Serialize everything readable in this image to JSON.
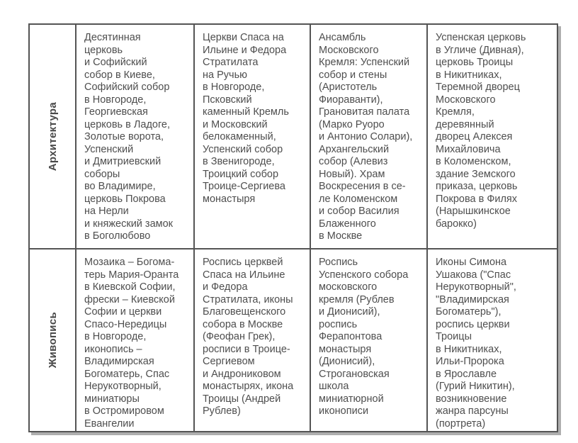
{
  "table": {
    "colors": {
      "border": "#545454",
      "text": "#4e4e4e",
      "shadow": "#aeaeae",
      "background": "#ffffff"
    },
    "rows": [
      {
        "header": "Архитектура",
        "cells": [
          [
            "Десятинная",
            "церковь",
            "и Софийский",
            "собор в Киеве,",
            "Софийский собор",
            "в Новгороде,",
            "Георгиевская",
            "церковь в Ладоге,",
            "Золотые ворота,",
            "Успенский",
            "и  Дмитриевский",
            "соборы",
            "во Владимире,",
            "церковь Покрова",
            "на Нерли",
            "и княжеский замок",
            "в Боголюбово"
          ],
          [
            "Церкви Спаса на",
            "Ильине и Федора",
            "Стратилата",
            "на Ручью",
            "в Новгороде,",
            "Псковский",
            "каменный Кремль",
            "и Московский",
            "белокаменный,",
            "Успенский собор",
            "в Звенигороде,",
            "Троицкий собор",
            "Троице-Сергиева",
            "монастыря"
          ],
          [
            "Ансамбль",
            "Московского",
            "Кремля: Успенский",
            "собор и стены",
            "(Аристотель",
            "Фиораванти),",
            "Грановитая палата",
            "(Марко Руоро",
            "и Антонио Солари),",
            "Архангельский",
            "собор (Алевиз",
            "Новый). Храм",
            "Воскресения в се-",
            "ле Коломенском",
            "и собор Василия",
            "Блаженного",
            "в Москве"
          ],
          [
            "Успенская церковь",
            "в Угличе (Дивная),",
            "церковь Троицы",
            "в Никитниках,",
            "Теремной дворец",
            "Московского",
            "Кремля,",
            "деревянный",
            "дворец Алексея",
            "Михайловича",
            "в Коломенском,",
            "здание Земского",
            "приказа, церковь",
            "Покрова в Филях",
            "(Нарышкинское",
            "барокко)"
          ]
        ]
      },
      {
        "header": "Живопись",
        "cells": [
          [
            "Мозаика – Богома-",
            "терь Мария-Оранта",
            "в Киевской Софии,",
            "фрески  – Киевской",
            "Софии и церкви",
            "Спасо-Нередицы",
            "в Новгороде,",
            "иконопись –",
            "Владимирская",
            "Богоматерь, Спас",
            "Нерукотворный,",
            "миниатюры",
            "в Остромировом",
            "Евангелии"
          ],
          [
            "Роспись церквей",
            "Спаса на Ильине",
            "и Федора",
            "Стратилата, иконы",
            "Благовещенского",
            "собора в Москве",
            "(Феофан Грек),",
            "росписи в Троице-",
            "Сергиевом",
            "и Андрониковом",
            "монастырях, икона",
            "Троицы (Андрей",
            "Рублев)"
          ],
          [
            "Роспись",
            "Успенского собора",
            "московского",
            "кремля (Рублев",
            "и Дионисий),",
            "роспись",
            "Ферапонтова",
            "монастыря",
            "(Дионисий),",
            "Строгановская",
            "школа",
            "миниатюрной",
            "иконописи"
          ],
          [
            "Иконы Симона",
            "Ушакова (\"Спас",
            "Нерукотворный\",",
            "\"Владимирская",
            "Богоматерь\"),",
            "роспись церкви",
            "Троицы",
            "в Никитниках,",
            "Ильи-Пророка",
            "в Ярославле",
            "(Гурий Никитин),",
            "возникновение",
            "жанра парсуны",
            "(портрета)"
          ]
        ]
      }
    ]
  }
}
